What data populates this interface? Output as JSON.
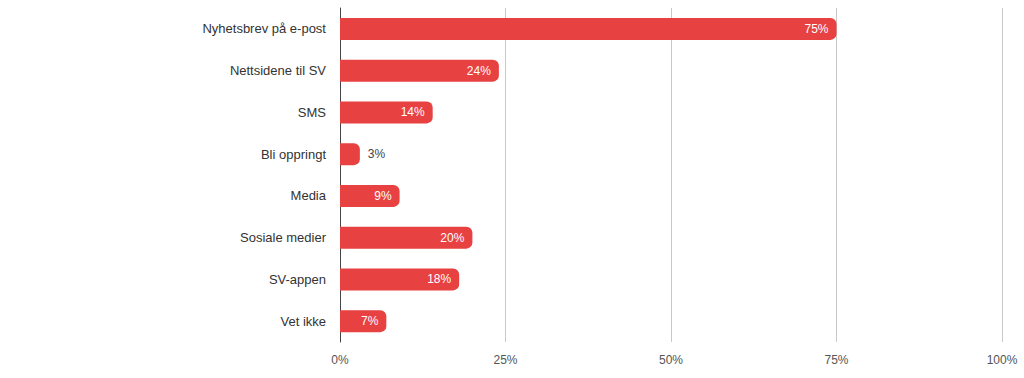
{
  "chart_data": {
    "type": "bar",
    "orientation": "horizontal",
    "categories": [
      "Nyhetsbrev på e-post",
      "Nettsidene til SV",
      "SMS",
      "Bli oppringt",
      "Media",
      "Sosiale medier",
      "SV-appen",
      "Vet ikke"
    ],
    "values": [
      75,
      24,
      14,
      3,
      9,
      20,
      18,
      7
    ],
    "value_labels": [
      "75%",
      "24%",
      "14%",
      "3%",
      "9%",
      "20%",
      "18%",
      "7%"
    ],
    "color": "#e84141",
    "xlim": [
      0,
      100
    ],
    "xticks": [
      {
        "value": 0,
        "label": "0%"
      },
      {
        "value": 25,
        "label": "25%"
      },
      {
        "value": 50,
        "label": "50%"
      },
      {
        "value": 75,
        "label": "75%"
      },
      {
        "value": 100,
        "label": "100%"
      }
    ],
    "grid": true,
    "data_labels": true
  }
}
